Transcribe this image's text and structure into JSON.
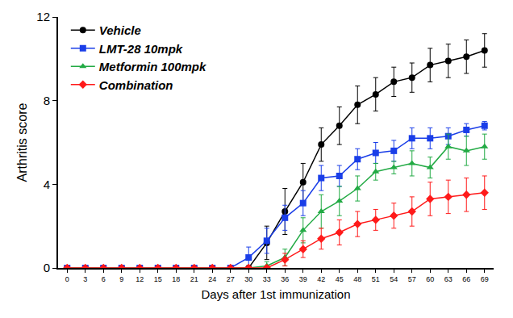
{
  "chart_data": {
    "type": "line",
    "x_label": "Days after 1st immunization",
    "y_label": "Arthritis score",
    "x": [
      0,
      3,
      6,
      9,
      12,
      15,
      18,
      21,
      24,
      27,
      30,
      33,
      36,
      39,
      42,
      45,
      48,
      51,
      54,
      57,
      60,
      63,
      66,
      69
    ],
    "xlim": [
      -1.5,
      70.5
    ],
    "xticks": [
      0,
      3,
      6,
      9,
      12,
      15,
      18,
      21,
      24,
      27,
      30,
      33,
      36,
      39,
      42,
      45,
      48,
      51,
      54,
      57,
      60,
      63,
      66,
      69
    ],
    "ylim": [
      0,
      12
    ],
    "yticks": [
      0,
      4,
      8,
      12
    ],
    "grid": false,
    "legend": "upper left",
    "series": [
      {
        "name": "Vehicle",
        "color": "#000000",
        "marker": "circle",
        "line_style": "solid",
        "values": [
          0,
          0,
          0,
          0,
          0,
          0,
          0,
          0,
          0,
          0,
          0,
          1.2,
          2.7,
          4.1,
          5.9,
          6.8,
          7.8,
          8.3,
          8.9,
          9.1,
          9.7,
          9.9,
          10.1,
          10.4
        ],
        "errors": [
          0,
          0,
          0,
          0,
          0,
          0,
          0,
          0,
          0,
          0,
          0.1,
          0.8,
          1.1,
          0.9,
          0.8,
          0.9,
          0.9,
          0.8,
          0.7,
          0.7,
          0.8,
          0.8,
          0.8,
          0.8
        ]
      },
      {
        "name": "LMT-28 10mpk",
        "color": "#1a3ee8",
        "marker": "square",
        "line_style": "solid",
        "values": [
          0,
          0,
          0,
          0,
          0,
          0,
          0,
          0,
          0,
          0,
          0.5,
          1.3,
          2.4,
          3.1,
          4.3,
          4.4,
          5.2,
          5.5,
          5.6,
          6.2,
          6.2,
          6.3,
          6.6,
          6.8
        ],
        "errors": [
          0,
          0,
          0,
          0,
          0,
          0,
          0,
          0,
          0,
          0,
          0.5,
          0.6,
          0.6,
          0.6,
          0.6,
          0.5,
          0.5,
          0.5,
          0.5,
          0.5,
          0.5,
          0.4,
          0.3,
          0.2
        ]
      },
      {
        "name": "Metformin 100mpk",
        "color": "#22aa44",
        "marker": "triangle-up",
        "line_style": "solid",
        "values": [
          0,
          0,
          0,
          0,
          0,
          0,
          0,
          0,
          0,
          0,
          0,
          0.1,
          0.5,
          1.8,
          2.7,
          3.2,
          3.8,
          4.6,
          4.8,
          5.0,
          4.8,
          5.8,
          5.6,
          5.8
        ],
        "errors": [
          0,
          0,
          0,
          0,
          0,
          0,
          0,
          0,
          0,
          0,
          0,
          0.2,
          0.4,
          0.6,
          0.8,
          0.7,
          0.6,
          0.4,
          0.3,
          0.6,
          0.5,
          0.6,
          0.7,
          0.6
        ]
      },
      {
        "name": "Combination",
        "color": "#ff1a1a",
        "marker": "diamond",
        "line_style": "solid",
        "values": [
          0,
          0,
          0,
          0,
          0,
          0,
          0,
          0,
          0,
          0,
          0,
          0,
          0.4,
          0.9,
          1.4,
          1.7,
          2.1,
          2.3,
          2.5,
          2.7,
          3.3,
          3.4,
          3.5,
          3.6
        ],
        "errors": [
          0,
          0,
          0,
          0,
          0,
          0,
          0,
          0,
          0,
          0,
          0,
          0.1,
          0.3,
          0.4,
          0.5,
          0.6,
          0.6,
          0.5,
          0.6,
          0.7,
          0.8,
          0.8,
          0.8,
          0.8
        ]
      }
    ]
  }
}
